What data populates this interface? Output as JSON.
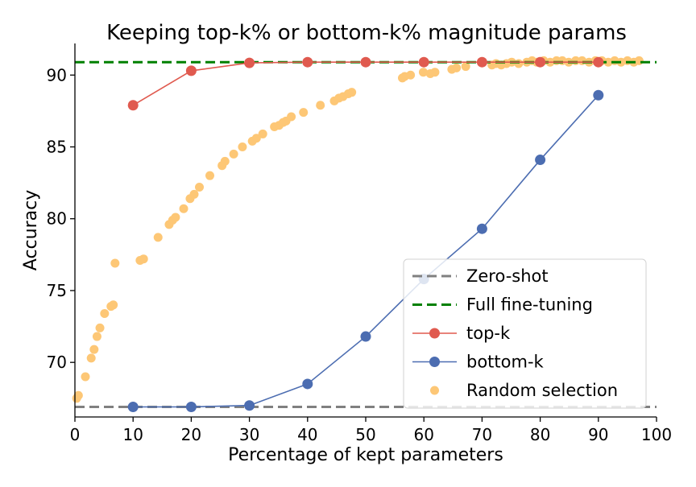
{
  "chart_data": {
    "type": "line",
    "title": "Keeping top-k% or bottom-k% magnitude params",
    "xlabel": "Percentage of kept parameters",
    "ylabel": "Accuracy",
    "xlim": [
      0,
      100
    ],
    "ylim": [
      66.2,
      92.2
    ],
    "xticks": [
      0,
      10,
      20,
      30,
      40,
      50,
      60,
      70,
      80,
      90,
      100
    ],
    "yticks": [
      70,
      75,
      80,
      85,
      90
    ],
    "grid": false,
    "legend_position": "bottom-right",
    "reference_lines": [
      {
        "name": "Zero-shot",
        "y": 66.9,
        "color": "#808080",
        "style": "dashed"
      },
      {
        "name": "Full fine-tuning",
        "y": 90.9,
        "color": "#008000",
        "style": "dashed"
      }
    ],
    "series": [
      {
        "name": "top-k",
        "color": "#e05a4f",
        "x": [
          10,
          20,
          30,
          40,
          50,
          60,
          70,
          80,
          90
        ],
        "y": [
          87.9,
          90.3,
          90.85,
          90.9,
          90.9,
          90.9,
          90.9,
          90.9,
          90.9
        ]
      },
      {
        "name": "bottom-k",
        "color": "#4c6db1",
        "x": [
          10,
          20,
          30,
          40,
          50,
          60,
          70,
          80,
          90
        ],
        "y": [
          66.9,
          66.9,
          67.0,
          68.5,
          71.8,
          75.8,
          79.3,
          84.1,
          88.6
        ]
      },
      {
        "name": "Random selection",
        "type": "scatter",
        "color": "#fdc776",
        "x": [
          0.3,
          0.6,
          1.8,
          2.8,
          3.3,
          3.8,
          4.3,
          5.1,
          6.2,
          6.6,
          6.9,
          11.2,
          11.8,
          14.3,
          16.2,
          16.8,
          17.3,
          18.7,
          19.8,
          20.5,
          21.4,
          23.2,
          25.3,
          25.8,
          27.3,
          28.8,
          30.5,
          31.2,
          32.3,
          34.3,
          35.1,
          35.8,
          36.3,
          37.2,
          39.3,
          42.2,
          44.6,
          45.4,
          46.1,
          47.0,
          47.6,
          56.3,
          56.7,
          57.7,
          59.9,
          61.1,
          61.9,
          64.8,
          65.6,
          67.2,
          71.7,
          72.4,
          73.3,
          74.2,
          75.1,
          76.3,
          77.7,
          78.6,
          79.4,
          80.6,
          81.7,
          82.8,
          83.8,
          84.9,
          86.1,
          87.2,
          88.4,
          89.5,
          90.6,
          91.7,
          92.8,
          93.9,
          95.0,
          96.1,
          97.0
        ],
        "y": [
          67.5,
          67.7,
          69.0,
          70.3,
          70.9,
          71.8,
          72.4,
          73.4,
          73.9,
          74.0,
          76.9,
          77.1,
          77.2,
          78.7,
          79.6,
          79.9,
          80.1,
          80.7,
          81.4,
          81.7,
          82.2,
          83.0,
          83.7,
          84.0,
          84.5,
          85.0,
          85.4,
          85.6,
          85.9,
          86.4,
          86.5,
          86.7,
          86.8,
          87.1,
          87.4,
          87.9,
          88.2,
          88.4,
          88.5,
          88.7,
          88.8,
          89.8,
          89.9,
          90.0,
          90.2,
          90.1,
          90.2,
          90.4,
          90.5,
          90.6,
          90.7,
          90.8,
          90.7,
          90.8,
          90.9,
          90.8,
          90.9,
          91.0,
          90.9,
          91.0,
          90.9,
          91.0,
          91.0,
          90.9,
          91.0,
          91.0,
          90.9,
          91.0,
          91.0,
          90.9,
          91.0,
          90.9,
          91.0,
          90.9,
          91.0
        ]
      }
    ]
  }
}
